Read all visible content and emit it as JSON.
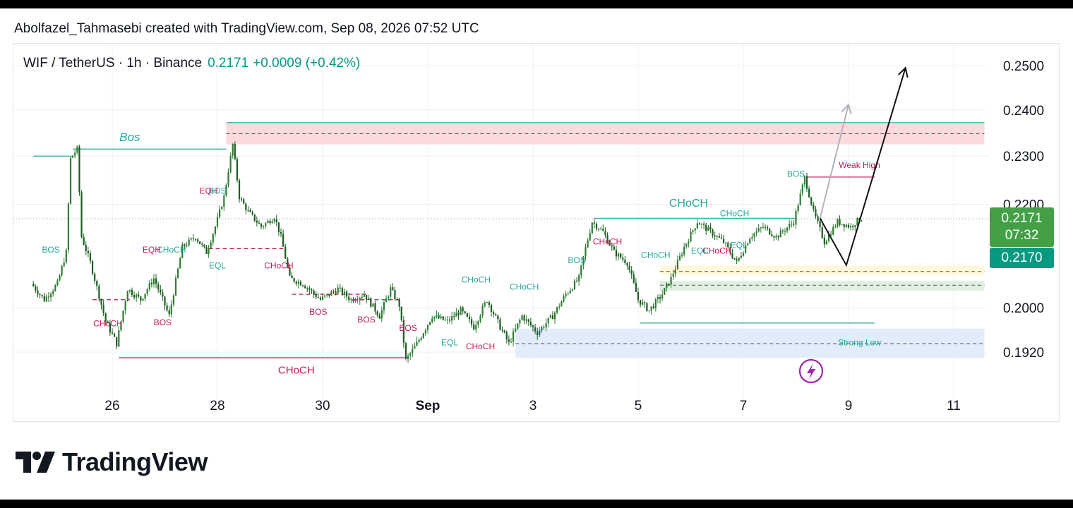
{
  "credit": "Abolfazel_Tahmasebi created with TradingView.com, Sep 08, 2026 07:52 UTC",
  "header": {
    "symbol": "WIF / TetherUS · 1h · Binance",
    "price": "0.2171",
    "change": "+0.0009 (+0.42%)"
  },
  "price_box": {
    "price": "0.2171",
    "countdown": "07:32",
    "price2": "0.2170"
  },
  "brand": "TradingView",
  "colors": {
    "up": "#089981",
    "candle": "#2e7d32",
    "bos_green": "#26a69a",
    "bos_red": "#c2185b",
    "supply_zone": "#fadadd",
    "demand_zone_yellow": "#fff9db",
    "demand_zone_green": "#dff0e0",
    "strong_low_zone": "#e3ecfb"
  },
  "chart_data": {
    "type": "candlestick",
    "x_tick_labels": [
      "26",
      "28",
      "30",
      "Sep",
      "3",
      "5",
      "7",
      "9",
      "11"
    ],
    "x_tick_dates": [
      "Aug 26",
      "Aug 28",
      "Aug 30",
      "Sep 1",
      "Sep 3",
      "Sep 5",
      "Sep 7",
      "Sep 9",
      "Sep 11"
    ],
    "y_tick_labels": [
      "0.2500",
      "0.2400",
      "0.2300",
      "0.2200",
      "0.2000",
      "0.1920"
    ],
    "y_ticks": [
      0.25,
      0.24,
      0.23,
      0.22,
      0.2,
      0.192
    ],
    "y_scale": "log",
    "last_price": 0.2171,
    "path_points": [
      [
        "Aug 24 12:00",
        0.2045
      ],
      [
        "Aug 24 18:00",
        0.2015
      ],
      [
        "Aug 25 00:00",
        0.2045
      ],
      [
        "Aug 25 04:00",
        0.2105
      ],
      [
        "Aug 25 06:00",
        0.2295
      ],
      [
        "Aug 25 09:00",
        0.2315
      ],
      [
        "Aug 25 11:00",
        0.2135
      ],
      [
        "Aug 25 15:00",
        0.2085
      ],
      [
        "Aug 25 22:00",
        0.1975
      ],
      [
        "Aug 26 03:00",
        0.1935
      ],
      [
        "Aug 26 08:00",
        0.2035
      ],
      [
        "Aug 26 14:00",
        0.2015
      ],
      [
        "Aug 26 20:00",
        0.2055
      ],
      [
        "Aug 27 03:00",
        0.1985
      ],
      [
        "Aug 27 09:00",
        0.2115
      ],
      [
        "Aug 27 15:00",
        0.2135
      ],
      [
        "Aug 27 20:00",
        0.2105
      ],
      [
        "Aug 28 00:00",
        0.2155
      ],
      [
        "Aug 28 04:00",
        0.2215
      ],
      [
        "Aug 28 08:00",
        0.2325
      ],
      [
        "Aug 28 11:00",
        0.2215
      ],
      [
        "Aug 28 15:00",
        0.2185
      ],
      [
        "Aug 28 21:00",
        0.2155
      ],
      [
        "Aug 29 03:00",
        0.2175
      ],
      [
        "Aug 29 06:00",
        0.2135
      ],
      [
        "Aug 29 10:00",
        0.2055
      ],
      [
        "Aug 29 16:00",
        0.2045
      ],
      [
        "Aug 30 00:00",
        0.2015
      ],
      [
        "Aug 30 08:00",
        0.2035
      ],
      [
        "Aug 30 14:00",
        0.2015
      ],
      [
        "Aug 30 20:00",
        0.2025
      ],
      [
        "Aug 31 03:00",
        0.1985
      ],
      [
        "Aug 31 08:00",
        0.2035
      ],
      [
        "Aug 31 12:00",
        0.2005
      ],
      [
        "Aug 31 15:00",
        0.1905
      ],
      [
        "Aug 31 20:00",
        0.1935
      ],
      [
        "Sep 1 03:00",
        0.1985
      ],
      [
        "Sep 1 10:00",
        0.1975
      ],
      [
        "Sep 1 16:00",
        0.1995
      ],
      [
        "Sep 1 22:00",
        0.1965
      ],
      [
        "Sep 2 04:00",
        0.2015
      ],
      [
        "Sep 2 10:00",
        0.1965
      ],
      [
        "Sep 2 14:00",
        0.1935
      ],
      [
        "Sep 2 20:00",
        0.1985
      ],
      [
        "Sep 3 03:00",
        0.1955
      ],
      [
        "Sep 3 10:00",
        0.1985
      ],
      [
        "Sep 3 16:00",
        0.2025
      ],
      [
        "Sep 3 22:00",
        0.2055
      ],
      [
        "Sep 4 00:00",
        0.2095
      ],
      [
        "Sep 4 04:00",
        0.2165
      ],
      [
        "Sep 4 09:00",
        0.2145
      ],
      [
        "Sep 4 14:00",
        0.2105
      ],
      [
        "Sep 4 20:00",
        0.2085
      ],
      [
        "Sep 5 01:00",
        0.2015
      ],
      [
        "Sep 5 06:00",
        0.1995
      ],
      [
        "Sep 5 12:00",
        0.2025
      ],
      [
        "Sep 5 16:00",
        0.2055
      ],
      [
        "Sep 5 22:00",
        0.2115
      ],
      [
        "Sep 6 04:00",
        0.2165
      ],
      [
        "Sep 6 10:00",
        0.2145
      ],
      [
        "Sep 6 16:00",
        0.2125
      ],
      [
        "Sep 6 22:00",
        0.2085
      ],
      [
        "Sep 7 04:00",
        0.2135
      ],
      [
        "Sep 7 10:00",
        0.2155
      ],
      [
        "Sep 7 16:00",
        0.2135
      ],
      [
        "Sep 8 00:00",
        0.2165
      ],
      [
        "Sep 8 05:00",
        0.2255
      ],
      [
        "Sep 8 09:00",
        0.2185
      ],
      [
        "Sep 8 14:00",
        0.2125
      ],
      [
        "Sep 8 20:00",
        0.2165
      ],
      [
        "Sep 9 02:00",
        0.2155
      ],
      [
        "Sep 9 06:00",
        0.2171
      ]
    ],
    "zones": [
      {
        "from": "Aug 28 04:00",
        "to": "end",
        "low": 0.2325,
        "high": 0.2372,
        "color": "#fadadd",
        "mid": 0.2348
      },
      {
        "from": "Sep 5 10:00",
        "to": "end",
        "low": 0.2061,
        "high": 0.2079,
        "color": "#fff9db",
        "mid": 0.2068
      },
      {
        "from": "Sep 5 10:00",
        "to": "end",
        "low": 0.2032,
        "high": 0.205,
        "color": "#dff0e0",
        "mid": 0.2042
      },
      {
        "from": "Sep 2 16:00",
        "to": "end",
        "low": 0.191,
        "high": 0.1962,
        "color": "#e3ecfb",
        "mid": 0.1935
      }
    ],
    "lines": [
      {
        "from": "Aug 24 12:00",
        "to": "Aug 25 06:00",
        "y": 0.23,
        "color": "#26a69a",
        "dash": false
      },
      {
        "from": "Aug 25 06:00",
        "to": "Aug 28 04:00",
        "y": 0.2315,
        "color": "#26a69a",
        "dash": false
      },
      {
        "from": "Aug 28 04:00",
        "to": "end",
        "y": 0.2372,
        "color": "#26a69a",
        "dash": false
      },
      {
        "from": "Aug 26 03:00",
        "to": "Aug 31 15:00",
        "y": 0.191,
        "color": "#c2185b",
        "dash": false
      },
      {
        "from": "Sep 4 04:00",
        "to": "Sep 8 00:00",
        "y": 0.2172,
        "color": "#26a69a",
        "dash": false
      },
      {
        "from": "Sep 8 05:00",
        "to": "Sep 9 12:00",
        "y": 0.2256,
        "color": "#c2185b",
        "dash": false
      },
      {
        "from": "Sep 5 01:00",
        "to": "Sep 9 12:00",
        "y": 0.1972,
        "color": "#26a69a",
        "dash": false
      },
      {
        "from": "Aug 27 20:00",
        "to": "Aug 29 06:00",
        "y": 0.2112,
        "color": "#c2185b",
        "dash": true
      },
      {
        "from": "Aug 25 15:00",
        "to": "Aug 26 08:00",
        "y": 0.2015,
        "color": "#c2185b",
        "dash": true
      },
      {
        "from": "Aug 29 10:00",
        "to": "Aug 30 20:00",
        "y": 0.2025,
        "color": "#c2185b",
        "dash": true
      },
      {
        "from": "Aug 30 14:00",
        "to": "Aug 31 12:00",
        "y": 0.2015,
        "color": "#c2185b",
        "dash": true
      }
    ],
    "labels": [
      {
        "text": "Bos",
        "x": "Aug 26 08:00",
        "y": 0.2332,
        "color": "#26a69a",
        "size": 17,
        "italic": true
      },
      {
        "text": "BOS",
        "x": "Aug 24 20:00",
        "y": 0.2104,
        "color": "#26a69a",
        "size": 12
      },
      {
        "text": "CHoCH",
        "x": "Aug 25 22:00",
        "y": 0.1966,
        "color": "#c2185b",
        "size": 12
      },
      {
        "text": "EQH",
        "x": "Aug 26 18:00",
        "y": 0.2104,
        "color": "#c2185b",
        "size": 12
      },
      {
        "text": "CHoCH",
        "x": "Aug 27 03:00",
        "y": 0.2104,
        "color": "#26a69a",
        "size": 12
      },
      {
        "text": "BOS",
        "x": "Aug 26 23:00",
        "y": 0.1968,
        "color": "#c2185b",
        "size": 12
      },
      {
        "text": "EQH",
        "x": "Aug 27 20:00",
        "y": 0.2222,
        "color": "#c2185b",
        "size": 12
      },
      {
        "text": "BOS",
        "x": "Aug 28 00:00",
        "y": 0.2222,
        "color": "#26a69a",
        "size": 12
      },
      {
        "text": "EQL",
        "x": "Aug 28 00:00",
        "y": 0.2074,
        "color": "#26a69a",
        "size": 12
      },
      {
        "text": "CHoCH",
        "x": "Aug 29 04:00",
        "y": 0.2074,
        "color": "#c2185b",
        "size": 12
      },
      {
        "text": "BOS",
        "x": "Aug 29 22:00",
        "y": 0.1987,
        "color": "#c2185b",
        "size": 12
      },
      {
        "text": "BOS",
        "x": "Aug 30 20:00",
        "y": 0.1973,
        "color": "#c2185b",
        "size": 12
      },
      {
        "text": "BOS",
        "x": "Aug 31 15:00",
        "y": 0.1958,
        "color": "#c2185b",
        "size": 12
      },
      {
        "text": "CHoCH",
        "x": "Aug 29 12:00",
        "y": 0.1882,
        "color": "#c2185b",
        "size": 15
      },
      {
        "text": "EQL",
        "x": "Sep 1 10:00",
        "y": 0.1932,
        "color": "#26a69a",
        "size": 12
      },
      {
        "text": "CHoCH",
        "x": "Sep 1 22:00",
        "y": 0.2047,
        "color": "#26a69a",
        "size": 12
      },
      {
        "text": "CHoCH",
        "x": "Sep 2 00:00",
        "y": 0.1925,
        "color": "#c2185b",
        "size": 12
      },
      {
        "text": "CHoCH",
        "x": "Sep 2 20:00",
        "y": 0.2034,
        "color": "#26a69a",
        "size": 12
      },
      {
        "text": "BOS",
        "x": "Sep 3 20:00",
        "y": 0.2084,
        "color": "#26a69a",
        "size": 12
      },
      {
        "text": "CHoCH",
        "x": "Sep 4 10:00",
        "y": 0.212,
        "color": "#c2185b",
        "size": 12
      },
      {
        "text": "CHoCH",
        "x": "Sep 5 08:00",
        "y": 0.2094,
        "color": "#26a69a",
        "size": 12
      },
      {
        "text": "CHoCH",
        "x": "Sep 5 23:00",
        "y": 0.2195,
        "color": "#26a69a",
        "size": 16
      },
      {
        "text": "CHoCH",
        "x": "Sep 6 20:00",
        "y": 0.2176,
        "color": "#26a69a",
        "size": 12
      },
      {
        "text": "EQL",
        "x": "Sep 6 04:00",
        "y": 0.2102,
        "color": "#26a69a",
        "size": 12
      },
      {
        "text": "CHoCH",
        "x": "Sep 6 12:00",
        "y": 0.2102,
        "color": "#c2185b",
        "size": 12
      },
      {
        "text": "EQL",
        "x": "Sep 6 22:00",
        "y": 0.2113,
        "color": "#26a69a",
        "size": 12
      },
      {
        "text": "BOS",
        "x": "Sep 8 00:00",
        "y": 0.2257,
        "color": "#26a69a",
        "size": 12
      },
      {
        "text": "Weak High",
        "x": "Sep 9 05:00",
        "y": 0.2275,
        "color": "#c2185b",
        "size": 12
      },
      {
        "text": "Strong Low",
        "x": "Sep 9 05:00",
        "y": 0.1932,
        "color": "#26a69a",
        "size": 12
      }
    ],
    "projection_black": [
      [
        "Sep 8 11:00",
        0.2172
      ],
      [
        "Sep 8 23:00",
        0.208
      ],
      [
        "Sep 10 02:00",
        0.2495
      ]
    ],
    "projection_grey": [
      [
        "Sep 8 11:00",
        0.2172
      ],
      [
        "Sep 9 00:00",
        0.2412
      ]
    ]
  }
}
